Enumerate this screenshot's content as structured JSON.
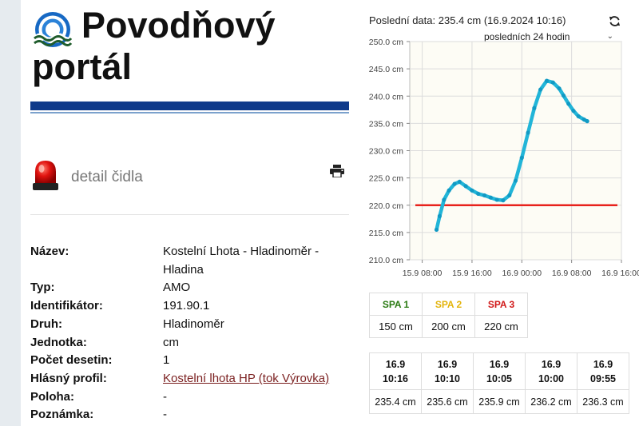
{
  "header": {
    "title_line1": "Povodňový",
    "title_line2": "portál"
  },
  "detail": {
    "title": "detail čidla"
  },
  "info_rows": [
    {
      "label": "Název:",
      "value": "Kostelní Lhota - Hladinoměr - Hladina",
      "link": false
    },
    {
      "label": "Typ:",
      "value": "AMO",
      "link": false
    },
    {
      "label": "Identifikátor:",
      "value": "191.90.1",
      "link": false
    },
    {
      "label": "Druh:",
      "value": "Hladinoměr",
      "link": false
    },
    {
      "label": "Jednotka:",
      "value": "cm",
      "link": false
    },
    {
      "label": "Počet desetin:",
      "value": "1",
      "link": false
    },
    {
      "label": "Hlásný profil:",
      "value": "Kostelní lhota HP (tok Výrovka)",
      "link": true
    },
    {
      "label": "Poloha:",
      "value": "-",
      "link": false
    },
    {
      "label": "Poznámka:",
      "value": "-",
      "link": false
    }
  ],
  "last_data": "Poslední data: 235.4 cm (16.9.2024 10:16)",
  "period_select": "posledních 24 hodin",
  "icons": {
    "logo": "logo-icon",
    "siren": "siren-icon",
    "print": "print-icon",
    "refresh": "refresh-icon",
    "chevron": "chevron-down-icon"
  },
  "chart_data": {
    "type": "line",
    "title": "",
    "xlabel": "",
    "ylabel": "",
    "y_tick_labels": [
      "210.0 cm",
      "215.0 cm",
      "220.0 cm",
      "225.0 cm",
      "230.0 cm",
      "235.0 cm",
      "240.0 cm",
      "245.0 cm",
      "250.0 cm"
    ],
    "y_ticks": [
      210,
      215,
      220,
      225,
      230,
      235,
      240,
      245,
      250
    ],
    "ylim": [
      210,
      250
    ],
    "x_tick_labels": [
      "15.9 08:00",
      "15.9 16:00",
      "16.9 00:00",
      "16.9 08:00",
      "16.9 16:00"
    ],
    "x_ticks_hours": [
      8,
      16,
      24,
      32,
      40
    ],
    "xlim_hours": [
      6,
      40
    ],
    "threshold": 220,
    "colors": {
      "series": "#22b5d8",
      "threshold": "#e8221c",
      "plot_bg": "#fdfcf5",
      "grid": "#dcdcdc"
    },
    "series": [
      {
        "x_hours": [
          10.3,
          10.8,
          11.5,
          12.3,
          13.2,
          14.0,
          15.0,
          16.0,
          17.0,
          18.0,
          19.0,
          20.0,
          21.0,
          22.0,
          23.0,
          24.0,
          25.0,
          26.0,
          27.0,
          28.0,
          29.0,
          30.0,
          30.7,
          31.5,
          32.3,
          33.1,
          34.0,
          34.5
        ],
        "values": [
          215.5,
          218.0,
          221.0,
          222.7,
          223.9,
          224.3,
          223.5,
          222.7,
          222.1,
          221.8,
          221.4,
          221.0,
          220.9,
          221.8,
          224.5,
          228.7,
          233.3,
          237.8,
          241.2,
          242.8,
          242.5,
          241.4,
          240.1,
          238.6,
          237.3,
          236.3,
          235.7,
          235.4
        ]
      }
    ]
  },
  "spa": [
    {
      "label": "SPA 1",
      "value": "150 cm",
      "color": "#2a7a12"
    },
    {
      "label": "SPA 2",
      "value": "200 cm",
      "color": "#e3b40c"
    },
    {
      "label": "SPA 3",
      "value": "220 cm",
      "color": "#d11a1a"
    }
  ],
  "history": [
    {
      "date": "16.9",
      "time": "10:16",
      "value": "235.4 cm"
    },
    {
      "date": "16.9",
      "time": "10:10",
      "value": "235.6 cm"
    },
    {
      "date": "16.9",
      "time": "10:05",
      "value": "235.9 cm"
    },
    {
      "date": "16.9",
      "time": "10:00",
      "value": "236.2 cm"
    },
    {
      "date": "16.9",
      "time": "09:55",
      "value": "236.3 cm"
    }
  ]
}
